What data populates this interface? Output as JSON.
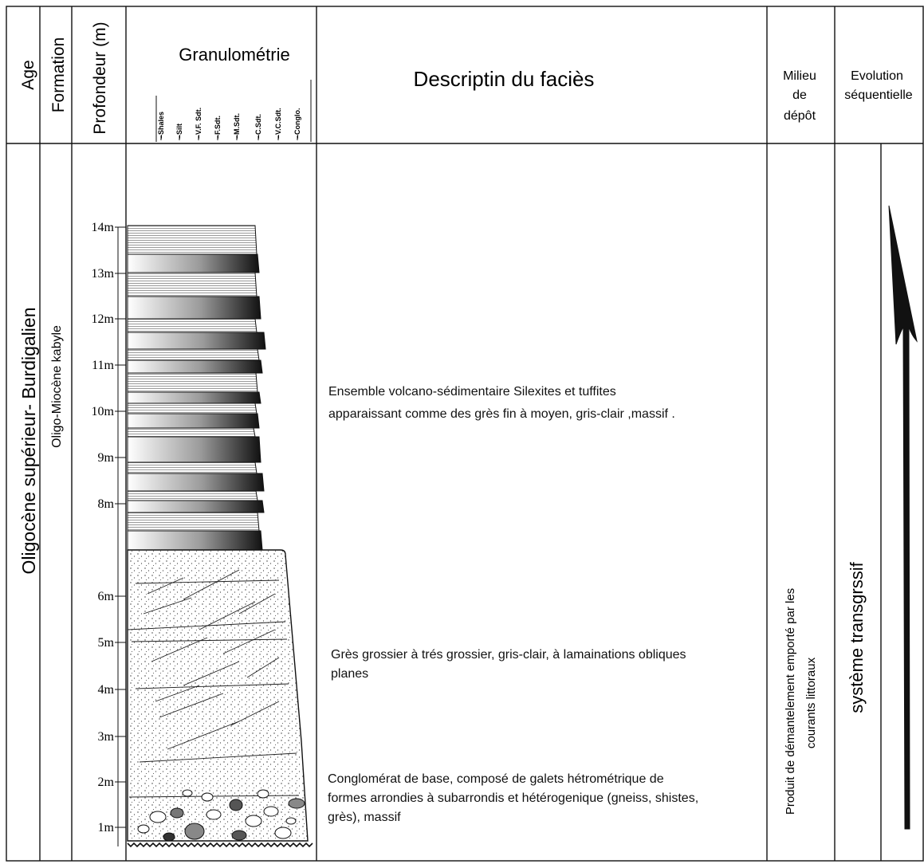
{
  "headers": {
    "age": "Age",
    "formation": "Formation",
    "depth": "Profondeur (m)",
    "granulometry": "Granulométrie",
    "grain_classes": [
      "Shales",
      "Silt",
      "V.F. Sdt.",
      "F.Sdt.",
      "M.Sdt.",
      "C.Sdt.",
      "V.C.Sdt.",
      "Conglo."
    ],
    "description": "Descriptin du faciès",
    "milieu": [
      "Milieu",
      "de",
      "dépôt"
    ],
    "evolution": [
      "Evolution",
      "séquentielle"
    ]
  },
  "age_value": "Oligocène supérieur- Burdigalien",
  "formation_value": "Oligo-Miocène kabyle",
  "depth_labels": [
    "14m",
    "13m",
    "12m",
    "11m",
    "10m",
    "9m",
    "8m",
    "6m",
    "5m",
    "4m",
    "3m",
    "2m",
    "1m"
  ],
  "facies": [
    {
      "lines": [
        "Ensemble volcano-sédimentaire Silexites et tuffites",
        "apparaissant comme des grès fin à moyen, gris-clair ,massif ."
      ]
    },
    {
      "lines": [
        "Grès grossier à trés grossier, gris-clair, à lamainations obliques",
        "planes"
      ]
    },
    {
      "lines": [
        "Conglomérat de base, composé de galets hétrométrique de",
        "formes arrondies à subarrondis et hétérogenique (gneiss, shistes,",
        "grès), massif"
      ]
    }
  ],
  "milieu_value": [
    "Produit de démantelement  emporté par les",
    "courants  littoraux"
  ],
  "evolution_value": "système transgrssif"
}
